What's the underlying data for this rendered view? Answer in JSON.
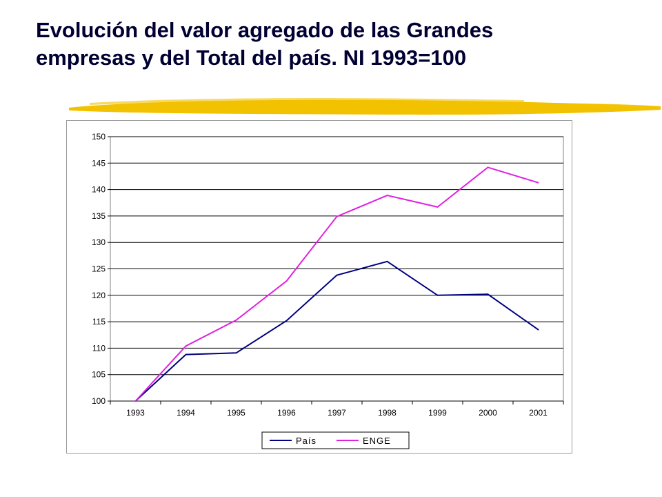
{
  "slide": {
    "title_line1": "Evolución del valor agregado de las Grandes",
    "title_line2": "empresas y del Total del país. NI 1993=100",
    "title_color": "#000033",
    "accent_color": "#F2C200"
  },
  "chart_data": {
    "type": "line",
    "title": "",
    "xlabel": "",
    "ylabel": "",
    "categories": [
      "1993",
      "1994",
      "1995",
      "1996",
      "1997",
      "1998",
      "1999",
      "2000",
      "2001"
    ],
    "ylim": [
      100,
      150
    ],
    "yticks": [
      100,
      105,
      110,
      115,
      120,
      125,
      130,
      135,
      140,
      145,
      150
    ],
    "grid": true,
    "legend_position": "bottom",
    "series": [
      {
        "name": "País",
        "color": "#000080",
        "values": [
          100,
          108.8,
          109.1,
          115.2,
          123.8,
          126.4,
          120.0,
          120.2,
          113.5
        ]
      },
      {
        "name": "ENGE",
        "color": "#E020E0",
        "values": [
          100,
          110.4,
          115.3,
          122.7,
          134.9,
          138.9,
          136.7,
          144.2,
          141.3
        ]
      }
    ]
  }
}
